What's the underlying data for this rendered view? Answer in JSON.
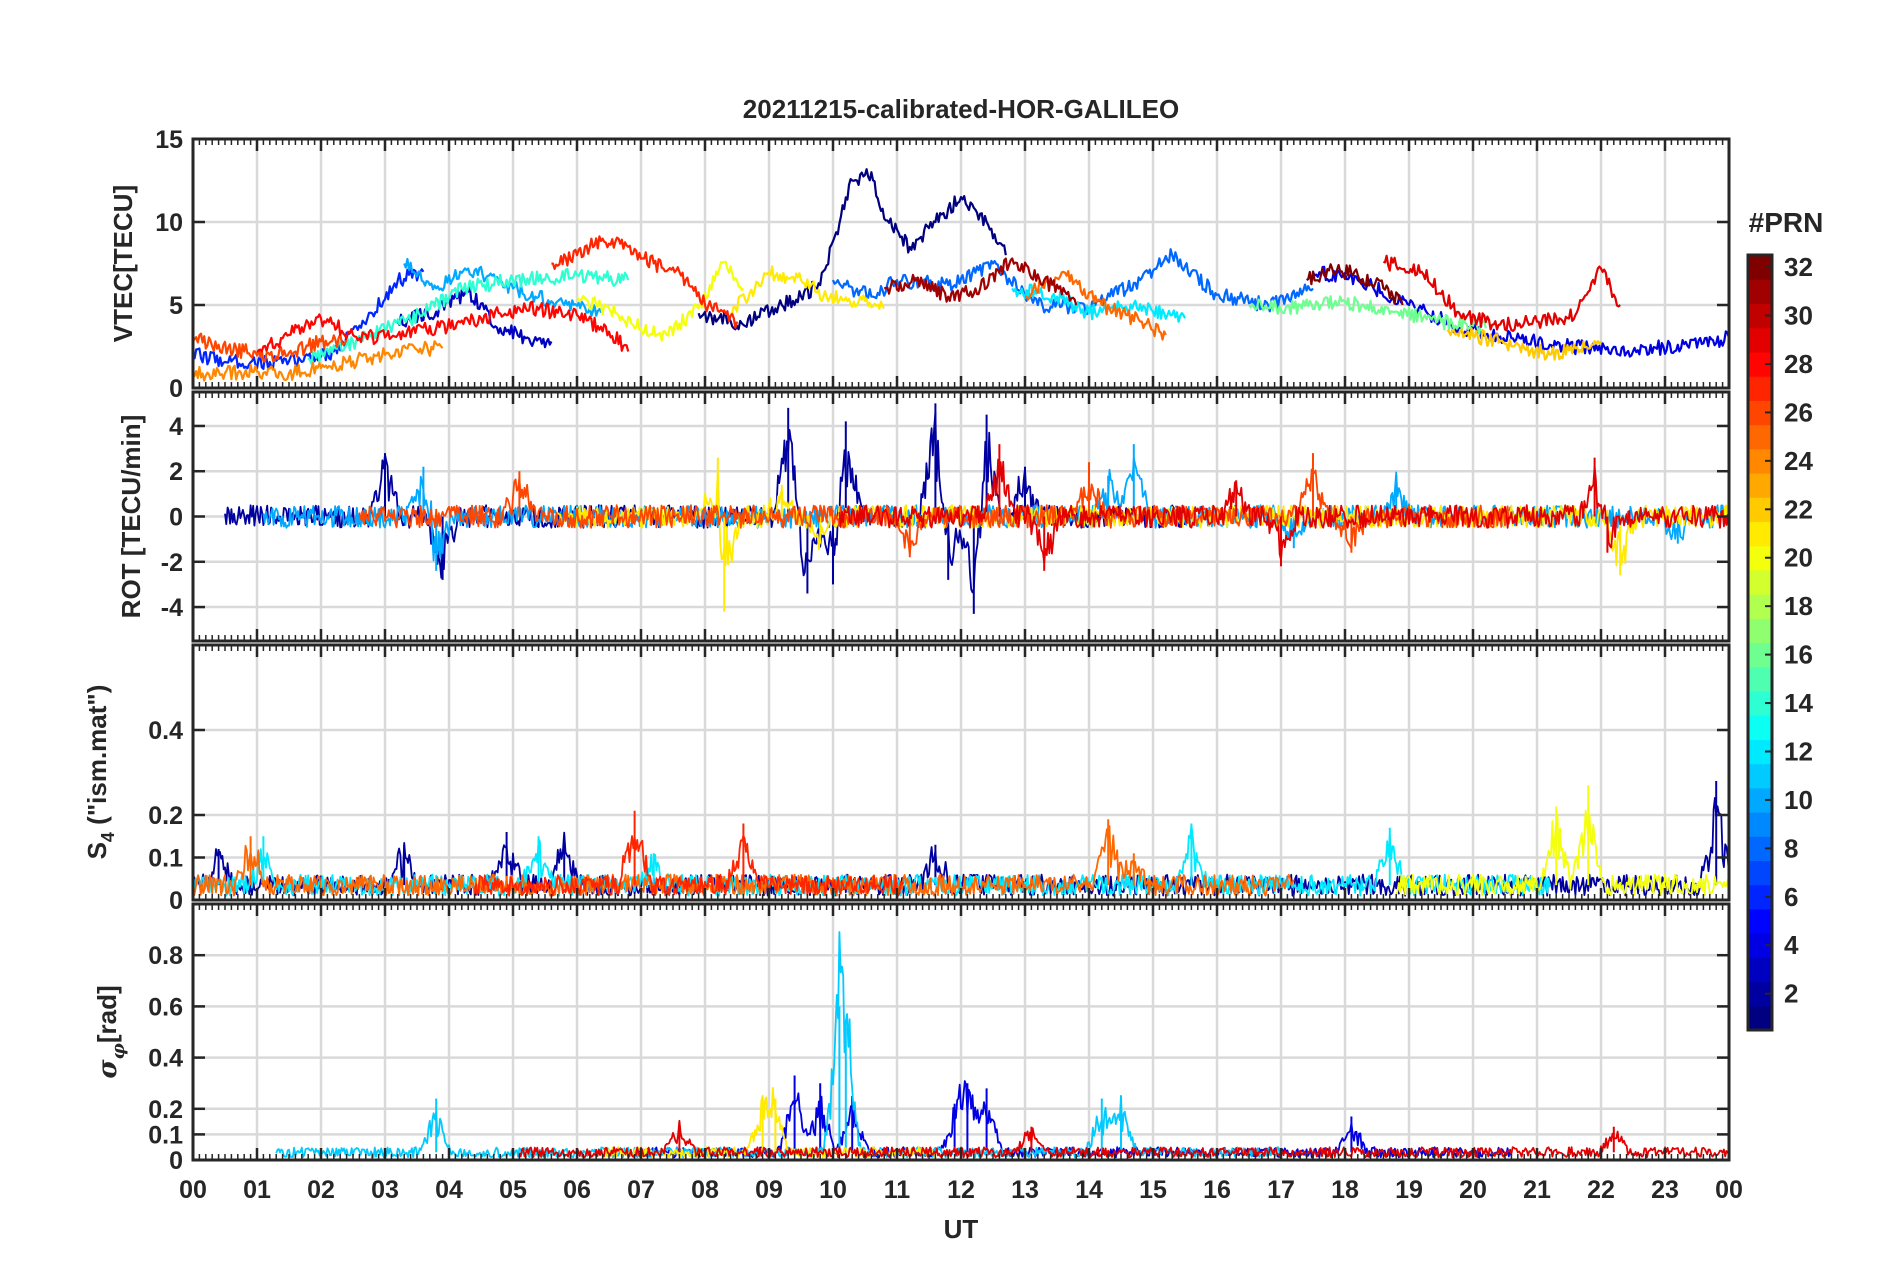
{
  "figure": {
    "title": "20211215-calibrated-HOR-GALILEO",
    "xlabel": "UT",
    "x_tick_labels": [
      "00",
      "01",
      "02",
      "03",
      "04",
      "05",
      "06",
      "07",
      "08",
      "09",
      "10",
      "11",
      "12",
      "13",
      "14",
      "15",
      "16",
      "17",
      "18",
      "19",
      "20",
      "21",
      "22",
      "23",
      "00"
    ]
  },
  "colorbar": {
    "title": "#PRN",
    "tick_labels": [
      "2",
      "4",
      "6",
      "8",
      "10",
      "12",
      "14",
      "16",
      "18",
      "20",
      "22",
      "24",
      "26",
      "28",
      "30",
      "32"
    ],
    "range": [
      1,
      32
    ],
    "colormap": "jet"
  },
  "chart_data": [
    {
      "type": "line",
      "panel": "vtec",
      "ylabel": "VTEC[TECU]",
      "ylim": [
        0,
        15
      ],
      "yticks": [
        "0",
        "5",
        "10",
        "15"
      ],
      "xlim": [
        0,
        24
      ],
      "x_unit": "hours UT",
      "grid": true,
      "series": [
        {
          "prn": 1,
          "x": [
            7.9,
            8.6,
            9.2,
            9.8,
            10.3,
            10.6,
            10.8,
            11.2,
            11.6,
            12.0,
            12.3,
            12.7
          ],
          "y": [
            4.5,
            3.8,
            5.0,
            6.2,
            12.5,
            13.0,
            10.2,
            8.5,
            10.0,
            11.5,
            10.5,
            8.0
          ]
        },
        {
          "prn": 3,
          "x": [
            3.2,
            3.8,
            4.3,
            4.8,
            5.2,
            5.6
          ],
          "y": [
            4.0,
            4.6,
            5.8,
            3.6,
            3.0,
            2.8
          ]
        },
        {
          "prn": 4,
          "x": [
            17.5,
            18.2,
            19.0,
            19.8,
            20.6,
            21.2,
            21.8,
            22.5,
            23.2,
            24.0
          ],
          "y": [
            7.0,
            6.5,
            5.0,
            3.6,
            3.0,
            2.6,
            2.4,
            2.2,
            2.6,
            3.0
          ]
        },
        {
          "prn": 6,
          "x": [
            0.0,
            0.6,
            1.4,
            2.2,
            2.8,
            3.2,
            3.6
          ],
          "y": [
            2.0,
            1.6,
            1.5,
            2.2,
            4.5,
            6.5,
            7.0
          ]
        },
        {
          "prn": 8,
          "x": [
            10.0,
            10.6,
            11.0,
            11.8,
            12.5,
            13.2,
            14.0,
            14.8,
            15.3,
            16.0,
            16.8,
            17.5
          ],
          "y": [
            6.5,
            5.5,
            6.5,
            6.2,
            7.5,
            5.0,
            4.8,
            6.5,
            8.0,
            5.6,
            5.0,
            6.0
          ]
        },
        {
          "prn": 10,
          "x": [
            3.3,
            3.8,
            4.3,
            5.0,
            5.8,
            6.4
          ],
          "y": [
            7.5,
            6.0,
            7.2,
            6.0,
            5.0,
            4.6
          ]
        },
        {
          "prn": 12,
          "x": [
            12.8,
            13.5,
            14.0,
            14.5,
            15.0,
            15.5
          ],
          "y": [
            6.0,
            5.5,
            4.5,
            5.0,
            4.6,
            4.2
          ]
        },
        {
          "prn": 14,
          "x": [
            1.8,
            2.4,
            3.0,
            3.6,
            4.2,
            5.0,
            6.0,
            6.8
          ],
          "y": [
            1.8,
            2.6,
            3.5,
            4.5,
            6.0,
            6.5,
            6.8,
            6.5
          ]
        },
        {
          "prn": 16,
          "x": [
            16.5,
            17.2,
            18.0,
            18.8,
            19.5,
            20.2
          ],
          "y": [
            5.0,
            4.8,
            5.2,
            4.6,
            4.0,
            3.6
          ]
        },
        {
          "prn": 20,
          "x": [
            6.0,
            6.6,
            7.0,
            7.4,
            7.9,
            8.3,
            8.6
          ],
          "y": [
            5.5,
            4.5,
            3.6,
            3.2,
            4.8,
            7.6,
            6.0
          ]
        },
        {
          "prn": 21,
          "x": [
            8.4,
            9.0,
            9.5,
            9.9,
            10.4,
            10.8
          ],
          "y": [
            4.5,
            7.0,
            6.5,
            5.5,
            5.2,
            4.8
          ]
        },
        {
          "prn": 22,
          "x": [
            19.6,
            20.2,
            20.8,
            21.2,
            21.6,
            22.0
          ],
          "y": [
            3.5,
            3.0,
            2.4,
            2.0,
            2.4,
            2.8
          ]
        },
        {
          "prn": 24,
          "x": [
            0.0,
            0.5,
            1.0,
            1.5,
            2.0,
            2.5,
            3.0,
            3.5,
            3.9
          ],
          "y": [
            0.8,
            0.9,
            1.0,
            0.9,
            1.2,
            1.6,
            2.0,
            2.3,
            2.4
          ]
        },
        {
          "prn": 25,
          "x": [
            13.0,
            13.6,
            14.2,
            14.8,
            15.2
          ],
          "y": [
            5.5,
            7.0,
            5.0,
            4.0,
            3.2
          ]
        },
        {
          "prn": 26,
          "x": [
            0.0,
            0.4,
            0.8,
            1.2,
            1.6,
            2.0,
            2.4
          ],
          "y": [
            3.0,
            2.6,
            2.2,
            2.0,
            2.2,
            2.8,
            2.9
          ]
        },
        {
          "prn": 27,
          "x": [
            5.6,
            6.0,
            6.4,
            6.8,
            7.2,
            7.6,
            8.0,
            8.5
          ],
          "y": [
            7.5,
            8.0,
            9.0,
            8.5,
            7.5,
            7.0,
            5.0,
            4.0
          ]
        },
        {
          "prn": 28,
          "x": [
            1.0,
            1.5,
            2.0,
            2.6,
            3.2,
            3.8,
            4.5,
            5.2,
            6.0,
            6.5,
            6.8
          ],
          "y": [
            2.2,
            3.2,
            4.2,
            3.0,
            3.2,
            3.6,
            4.2,
            4.8,
            4.4,
            3.4,
            2.2
          ]
        },
        {
          "prn": 29,
          "x": [
            18.6,
            19.2,
            19.8,
            20.4,
            21.0,
            21.6,
            22.0,
            22.3
          ],
          "y": [
            7.6,
            7.0,
            4.4,
            3.8,
            4.0,
            4.4,
            7.2,
            5.0
          ]
        },
        {
          "prn": 31,
          "x": [
            10.8,
            11.3,
            11.8,
            12.3,
            12.8,
            13.3,
            13.8
          ],
          "y": [
            6.0,
            6.5,
            5.5,
            6.0,
            7.8,
            6.5,
            5.0
          ]
        },
        {
          "prn": 32,
          "x": [
            17.4,
            17.8,
            18.2,
            18.6,
            18.9
          ],
          "y": [
            6.5,
            7.2,
            6.8,
            6.0,
            5.0
          ]
        }
      ]
    },
    {
      "type": "line",
      "panel": "rot",
      "ylabel": "ROT [TECU/min]",
      "ylim": [
        -5.5,
        5.5
      ],
      "yticks": [
        "-4",
        "-2",
        "0",
        "2",
        "4"
      ],
      "xlim": [
        0,
        24
      ],
      "x_unit": "hours UT",
      "grid": true,
      "series": [
        {
          "prn": 2,
          "x": [
            3.0,
            3.9,
            9.3,
            9.6,
            10.0,
            10.2,
            11.6,
            11.8,
            12.2,
            12.4,
            13.0
          ],
          "y": [
            2.8,
            -2.8,
            4.8,
            -3.4,
            -3.0,
            4.2,
            5.0,
            -2.8,
            -4.3,
            4.5,
            2.2
          ]
        },
        {
          "prn": 10,
          "x": [
            3.6,
            3.8,
            14.3,
            14.7,
            17.2,
            18.8,
            23.2
          ],
          "y": [
            2.2,
            -2.4,
            1.8,
            3.2,
            -1.4,
            1.8,
            -1.2
          ]
        },
        {
          "prn": 21,
          "x": [
            8.2,
            8.3,
            9.2,
            9.8,
            22.3
          ],
          "y": [
            2.6,
            -4.2,
            1.4,
            -1.2,
            -2.6
          ]
        },
        {
          "prn": 26,
          "x": [
            5.1,
            11.2,
            14.0,
            17.5,
            18.1
          ],
          "y": [
            2.0,
            -1.8,
            2.4,
            2.8,
            -1.6
          ]
        },
        {
          "prn": 29,
          "x": [
            12.6,
            13.3,
            16.3,
            17.0,
            21.9,
            22.1
          ],
          "y": [
            3.2,
            -2.4,
            1.6,
            -2.2,
            2.6,
            -1.6
          ]
        }
      ]
    },
    {
      "type": "line",
      "panel": "s4",
      "ylabel": "S4 (\"ism.mat\")",
      "ylim": [
        0,
        0.6
      ],
      "yticks": [
        "0",
        "0.1",
        "0.2",
        "0.4"
      ],
      "xlim": [
        0,
        24
      ],
      "x_unit": "hours UT",
      "grid": true,
      "series": [
        {
          "prn": 2,
          "x": [
            0.4,
            3.3,
            4.9,
            5.8,
            11.6,
            23.8
          ],
          "y": [
            0.12,
            0.13,
            0.16,
            0.15,
            0.13,
            0.28
          ]
        },
        {
          "prn": 12,
          "x": [
            1.1,
            5.4,
            7.2,
            15.6,
            18.7
          ],
          "y": [
            0.15,
            0.15,
            0.11,
            0.18,
            0.17
          ]
        },
        {
          "prn": 20,
          "x": [
            21.3,
            21.8
          ],
          "y": [
            0.22,
            0.27
          ]
        },
        {
          "prn": 25,
          "x": [
            0.9,
            14.3,
            14.7
          ],
          "y": [
            0.15,
            0.19,
            0.11
          ]
        },
        {
          "prn": 27,
          "x": [
            6.9,
            8.6
          ],
          "y": [
            0.21,
            0.18
          ]
        }
      ]
    },
    {
      "type": "line",
      "panel": "sigma_phi",
      "ylabel": "σφ[rad]",
      "ylim": [
        0,
        1.0
      ],
      "yticks": [
        "0",
        "0.1",
        "0.2",
        "0.4",
        "0.6",
        "0.8"
      ],
      "xlim": [
        0,
        24
      ],
      "x_unit": "hours UT",
      "grid": true,
      "series": [
        {
          "prn": 4,
          "x": [
            9.4,
            9.8,
            10.3,
            11.9,
            12.1,
            12.4,
            18.1
          ],
          "y": [
            0.33,
            0.3,
            0.25,
            0.22,
            0.3,
            0.28,
            0.17
          ]
        },
        {
          "prn": 11,
          "x": [
            3.8,
            10.1,
            10.2,
            14.2,
            14.5
          ],
          "y": [
            0.24,
            0.6,
            0.52,
            0.24,
            0.25
          ]
        },
        {
          "prn": 21,
          "x": [
            8.9,
            9.1
          ],
          "y": [
            0.25,
            0.24
          ]
        },
        {
          "prn": 29,
          "x": [
            7.6,
            13.1,
            22.2
          ],
          "y": [
            0.15,
            0.13,
            0.13
          ]
        }
      ]
    }
  ]
}
